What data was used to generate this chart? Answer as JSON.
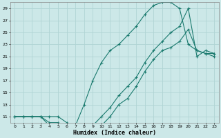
{
  "xlabel": "Humidex (Indice chaleur)",
  "bg_color": "#cce8e8",
  "grid_color": "#b0d4d4",
  "line_color": "#1a7a6e",
  "xlim": [
    -0.5,
    23.5
  ],
  "ylim": [
    10,
    30
  ],
  "yticks": [
    11,
    13,
    15,
    17,
    19,
    21,
    23,
    25,
    27,
    29
  ],
  "xticks": [
    0,
    1,
    2,
    3,
    4,
    5,
    6,
    7,
    8,
    9,
    10,
    11,
    12,
    13,
    14,
    15,
    16,
    17,
    18,
    19,
    20,
    21,
    22,
    23
  ],
  "series1_x": [
    0,
    1,
    2,
    3,
    4,
    5,
    6,
    7,
    8,
    9,
    10,
    11,
    12,
    13,
    14,
    15,
    16,
    17,
    18,
    19,
    20,
    21,
    22,
    23
  ],
  "series1_y": [
    11,
    11,
    11,
    11,
    11,
    11,
    10,
    9.5,
    13,
    17,
    20,
    22,
    23,
    24.5,
    26,
    28,
    29.5,
    30,
    30,
    29,
    23,
    22,
    21.5,
    21.5
  ],
  "series2_x": [
    0,
    1,
    2,
    3,
    4,
    5,
    6,
    7,
    8,
    9,
    10,
    11,
    12,
    13,
    14,
    15,
    16,
    17,
    18,
    19,
    20,
    21,
    22,
    23
  ],
  "series2_y": [
    11,
    11,
    11,
    11,
    10,
    10,
    9.5,
    9.5,
    9.5,
    9,
    9.5,
    11,
    13,
    14,
    16,
    18.5,
    20.5,
    22,
    22.5,
    23.5,
    25.5,
    22,
    21.5,
    21
  ],
  "series3_x": [
    0,
    1,
    2,
    3,
    4,
    5,
    6,
    7,
    8,
    9,
    10,
    11,
    12,
    13,
    14,
    15,
    16,
    17,
    18,
    19,
    20,
    21,
    22,
    23
  ],
  "series3_y": [
    11,
    11,
    11,
    11,
    9.5,
    9.5,
    9.5,
    9,
    9,
    9.5,
    11,
    12.5,
    14.5,
    16,
    17.5,
    20,
    22,
    23.5,
    25,
    26,
    29,
    21,
    22,
    21.5
  ]
}
